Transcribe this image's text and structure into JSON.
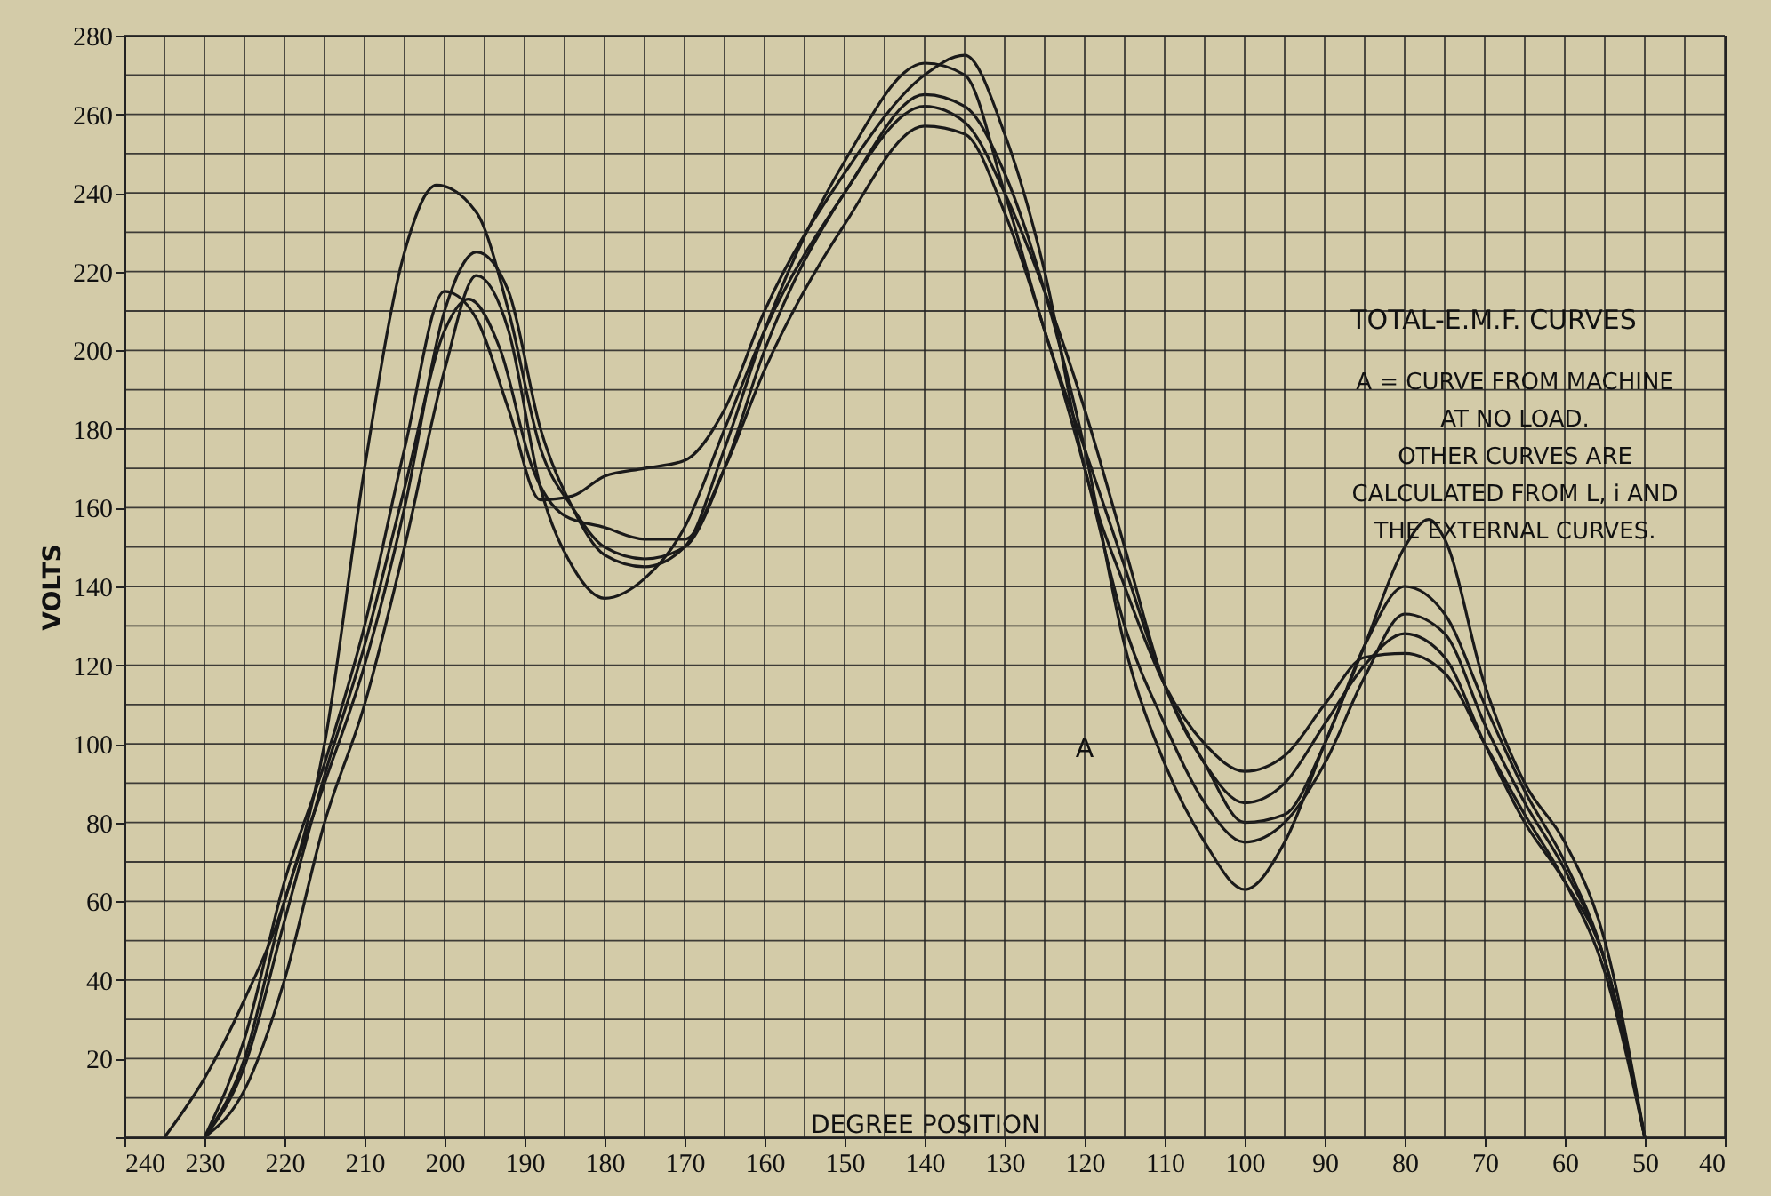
{
  "chart_data": {
    "type": "line",
    "title": "TOTAL-E.M.F. CURVES",
    "xlabel": "DEGREE POSITION",
    "ylabel": "VOLTS",
    "annotations": [
      "A = CURVE FROM MACHINE",
      "AT NO LOAD.",
      "OTHER CURVES ARE",
      "CALCULATED FROM L, i AND",
      "THE EXTERNAL CURVES.",
      "A"
    ],
    "xlim": [
      240,
      40
    ],
    "ylim": [
      0,
      280
    ],
    "xticks": [
      240,
      {
        "value": 235,
        "label": null
      },
      230,
      {
        "value": 225,
        "label": null
      },
      220,
      {
        "value": 215,
        "label": null
      },
      210,
      {
        "value": 205,
        "label": null
      },
      200,
      {
        "value": 195,
        "label": null
      },
      190,
      {
        "value": 185,
        "label": null
      },
      180,
      {
        "value": 175,
        "label": null
      },
      170,
      {
        "value": 165,
        "label": null
      },
      160,
      {
        "value": 155,
        "label": null
      },
      150,
      {
        "value": 145,
        "label": null
      },
      140,
      {
        "value": 135,
        "label": null
      },
      130,
      {
        "value": 125,
        "label": null
      },
      120,
      {
        "value": 115,
        "label": null
      },
      110,
      {
        "value": 105,
        "label": null
      },
      100,
      {
        "value": 95,
        "label": null
      },
      90,
      {
        "value": 85,
        "label": null
      },
      80,
      {
        "value": 75,
        "label": null
      },
      70,
      {
        "value": 65,
        "label": null
      },
      60,
      {
        "value": 55,
        "label": null
      },
      50,
      {
        "value": 45,
        "label": null
      },
      40
    ],
    "yticks": [
      {
        "value": 0,
        "label": null
      },
      {
        "value": 10,
        "label": null
      },
      20,
      {
        "value": 30,
        "label": null
      },
      40,
      {
        "value": 50,
        "label": null
      },
      60,
      {
        "value": 70,
        "label": null
      },
      80,
      {
        "value": 90,
        "label": null
      },
      100,
      {
        "value": 110,
        "label": null
      },
      120,
      {
        "value": 130,
        "label": null
      },
      140,
      {
        "value": 150,
        "label": null
      },
      160,
      {
        "value": 170,
        "label": null
      },
      180,
      {
        "value": 190,
        "label": null
      },
      200,
      {
        "value": 210,
        "label": null
      },
      220,
      {
        "value": 230,
        "label": null
      },
      240,
      {
        "value": 250,
        "label": null
      },
      260,
      {
        "value": 270,
        "label": null
      },
      280
    ],
    "grid": true,
    "marker": "none",
    "line_style": "solid",
    "series": [
      {
        "color": "#1a1a1a",
        "x": [
          230,
          225,
          220,
          215,
          210,
          205,
          200,
          196,
          192,
          188,
          184,
          180,
          175,
          170,
          165,
          160,
          150,
          140,
          135,
          130,
          125,
          120,
          115,
          110,
          105,
          100,
          95,
          90,
          85,
          80,
          77,
          75,
          70,
          65,
          60,
          55,
          50
        ],
        "values": [
          0,
          12,
          40,
          80,
          110,
          150,
          195,
          219,
          205,
          165,
          145,
          137,
          142,
          155,
          180,
          205,
          240,
          265,
          262,
          245,
          215,
          175,
          125,
          95,
          75,
          63,
          75,
          100,
          125,
          150,
          157,
          152,
          115,
          90,
          75,
          50,
          0
        ]
      },
      {
        "color": "#1a1a1a",
        "x": [
          235,
          230,
          225,
          220,
          215,
          210,
          205,
          201,
          196,
          192,
          188,
          184,
          180,
          175,
          170,
          165,
          160,
          150,
          140,
          135,
          130,
          125,
          120,
          115,
          110,
          105,
          100,
          95,
          90,
          85,
          80,
          75,
          70,
          65,
          60,
          55,
          50
        ],
        "values": [
          0,
          15,
          35,
          60,
          100,
          170,
          225,
          242,
          235,
          210,
          175,
          160,
          150,
          147,
          150,
          170,
          200,
          240,
          262,
          258,
          240,
          215,
          185,
          150,
          115,
          95,
          85,
          90,
          105,
          120,
          128,
          122,
          100,
          80,
          65,
          45,
          0
        ]
      },
      {
        "color": "#1a1a1a",
        "x": [
          230,
          225,
          220,
          215,
          210,
          205,
          200,
          196,
          192,
          188,
          184,
          180,
          175,
          170,
          165,
          160,
          150,
          140,
          135,
          130,
          125,
          120,
          115,
          110,
          105,
          100,
          95,
          90,
          85,
          80,
          75,
          70,
          65,
          60,
          55,
          50
        ],
        "values": [
          0,
          20,
          60,
          90,
          120,
          160,
          210,
          225,
          215,
          180,
          160,
          148,
          145,
          150,
          175,
          205,
          248,
          273,
          270,
          240,
          205,
          175,
          145,
          115,
          95,
          80,
          82,
          100,
          125,
          140,
          133,
          110,
          88,
          70,
          45,
          0
        ]
      },
      {
        "color": "#1a1a1a",
        "x": [
          230,
          225,
          220,
          215,
          210,
          205,
          200,
          196,
          192,
          188,
          184,
          180,
          175,
          170,
          165,
          160,
          150,
          140,
          135,
          130,
          125,
          120,
          115,
          110,
          105,
          100,
          95,
          90,
          85,
          80,
          75,
          70,
          65,
          60,
          55,
          50
        ],
        "values": [
          0,
          25,
          65,
          95,
          130,
          175,
          215,
          208,
          185,
          162,
          163,
          168,
          170,
          172,
          185,
          210,
          245,
          270,
          275,
          255,
          220,
          170,
          140,
          115,
          100,
          93,
          97,
          110,
          122,
          123,
          118,
          100,
          82,
          65,
          42,
          0
        ]
      },
      {
        "color": "#1a1a1a",
        "x": [
          230,
          225,
          220,
          215,
          210,
          205,
          200,
          197,
          193,
          189,
          185,
          180,
          175,
          170,
          165,
          160,
          150,
          140,
          135,
          130,
          125,
          120,
          115,
          110,
          105,
          100,
          95,
          90,
          85,
          80,
          75,
          70,
          65,
          60,
          55,
          50
        ],
        "values": [
          0,
          18,
          55,
          92,
          125,
          165,
          205,
          213,
          200,
          170,
          158,
          155,
          152,
          152,
          170,
          195,
          232,
          257,
          255,
          235,
          205,
          170,
          130,
          105,
          85,
          75,
          80,
          95,
          117,
          133,
          128,
          105,
          85,
          68,
          45,
          0
        ]
      }
    ]
  }
}
